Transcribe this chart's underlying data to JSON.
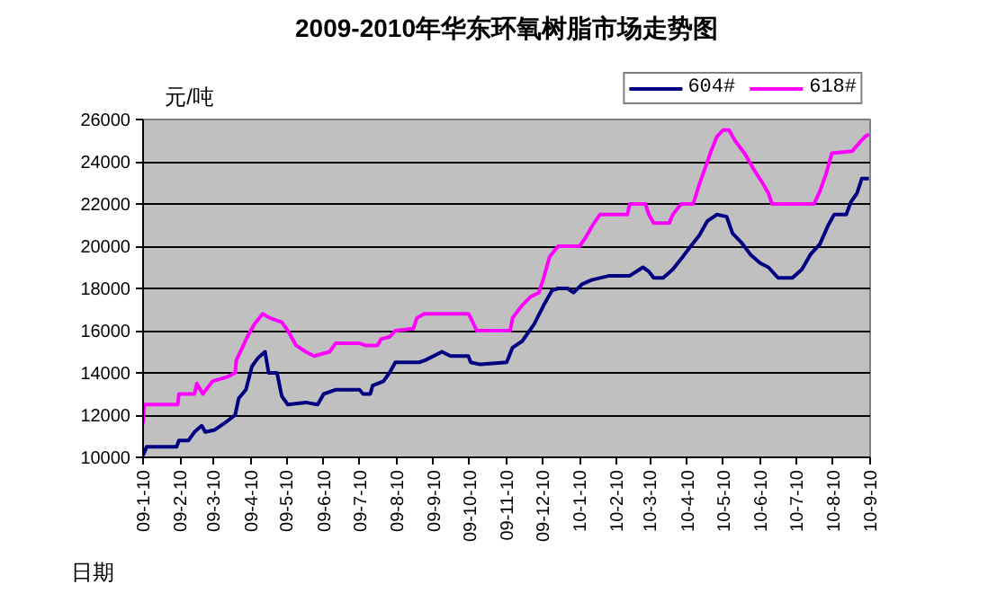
{
  "chart_data": {
    "type": "line",
    "title": "2009-2010年华东环氧树脂市场走势图",
    "ylabel": "元/吨",
    "xlabel": "日期",
    "ylim": [
      10000,
      26000
    ],
    "yticks": [
      10000,
      12000,
      14000,
      16000,
      18000,
      20000,
      22000,
      24000,
      26000
    ],
    "xlim": [
      "2009-01-10",
      "2010-09-10"
    ],
    "xticks": [
      {
        "value": "2009-01-10",
        "label": "09-1-10"
      },
      {
        "value": "2009-02-10",
        "label": "09-2-10"
      },
      {
        "value": "2009-03-10",
        "label": "09-3-10"
      },
      {
        "value": "2009-04-10",
        "label": "09-4-10"
      },
      {
        "value": "2009-05-10",
        "label": "09-5-10"
      },
      {
        "value": "2009-06-10",
        "label": "09-6-10"
      },
      {
        "value": "2009-07-10",
        "label": "09-7-10"
      },
      {
        "value": "2009-08-10",
        "label": "09-8-10"
      },
      {
        "value": "2009-09-10",
        "label": "09-9-10"
      },
      {
        "value": "2009-10-10",
        "label": "09-10-10"
      },
      {
        "value": "2009-11-10",
        "label": "09-11-10"
      },
      {
        "value": "2009-12-10",
        "label": "09-12-10"
      },
      {
        "value": "2010-01-10",
        "label": "10-1-10"
      },
      {
        "value": "2010-02-10",
        "label": "10-2-10"
      },
      {
        "value": "2010-03-10",
        "label": "10-3-10"
      },
      {
        "value": "2010-04-10",
        "label": "10-4-10"
      },
      {
        "value": "2010-05-10",
        "label": "10-5-10"
      },
      {
        "value": "2010-06-10",
        "label": "10-6-10"
      },
      {
        "value": "2010-07-10",
        "label": "10-7-10"
      },
      {
        "value": "2010-08-10",
        "label": "10-8-10"
      },
      {
        "value": "2010-09-10",
        "label": "10-9-10"
      }
    ],
    "grid": "y",
    "legend": "top right",
    "marker": "none",
    "line_style": "solid",
    "series": [
      {
        "name": "604#",
        "color": "#000080",
        "x": [
          "2009-01-10",
          "2009-01-13",
          "2009-02-07",
          "2009-02-09",
          "2009-02-17",
          "2009-02-22",
          "2009-02-28",
          "2009-03-03",
          "2009-03-11",
          "2009-03-21",
          "2009-03-28",
          "2009-03-31",
          "2009-04-06",
          "2009-04-11",
          "2009-04-16",
          "2009-04-22",
          "2009-04-25",
          "2009-05-02",
          "2009-05-06",
          "2009-05-11",
          "2009-05-26",
          "2009-06-05",
          "2009-06-10",
          "2009-06-20",
          "2009-07-10",
          "2009-07-13",
          "2009-07-19",
          "2009-07-21",
          "2009-07-30",
          "2009-08-04",
          "2009-08-09",
          "2009-08-29",
          "2009-09-03",
          "2009-09-17",
          "2009-09-24",
          "2009-10-09",
          "2009-10-11",
          "2009-10-19",
          "2009-11-10",
          "2009-11-15",
          "2009-11-23",
          "2009-12-03",
          "2009-12-11",
          "2009-12-18",
          "2009-12-23",
          "2009-12-31",
          "2010-01-05",
          "2010-01-12",
          "2010-01-20",
          "2010-02-04",
          "2010-02-21",
          "2010-03-04",
          "2010-03-09",
          "2010-03-13",
          "2010-03-21",
          "2010-03-29",
          "2010-04-05",
          "2010-04-13",
          "2010-04-20",
          "2010-04-27",
          "2010-05-05",
          "2010-05-13",
          "2010-05-18",
          "2010-05-25",
          "2010-06-02",
          "2010-06-10",
          "2010-06-17",
          "2010-06-25",
          "2010-07-07",
          "2010-07-15",
          "2010-07-22",
          "2010-07-30",
          "2010-08-06",
          "2010-08-11",
          "2010-08-21",
          "2010-08-25",
          "2010-08-30",
          "2010-09-03",
          "2010-09-09"
        ],
        "values": [
          10100,
          10500,
          10500,
          10800,
          10800,
          11200,
          11500,
          11200,
          11300,
          11700,
          12000,
          12800,
          13200,
          14300,
          14700,
          15000,
          14000,
          14000,
          12900,
          12500,
          12600,
          12500,
          13000,
          13200,
          13200,
          13000,
          13000,
          13400,
          13600,
          14000,
          14500,
          14500,
          14600,
          15000,
          14800,
          14800,
          14500,
          14400,
          14500,
          15200,
          15500,
          16300,
          17200,
          17900,
          18000,
          18000,
          17800,
          18200,
          18400,
          18600,
          18600,
          19000,
          18800,
          18500,
          18500,
          18900,
          19400,
          20000,
          20500,
          21200,
          21500,
          21400,
          20600,
          20200,
          19600,
          19200,
          19000,
          18500,
          18500,
          18900,
          19600,
          20100,
          21000,
          21500,
          21500,
          22100,
          22500,
          23200,
          23200
        ]
      },
      {
        "name": "618#",
        "color": "#ff00ff",
        "x": [
          "2009-01-10",
          "2009-01-11",
          "2009-02-08",
          "2009-02-09",
          "2009-02-22",
          "2009-02-24",
          "2009-03-01",
          "2009-03-09",
          "2009-03-21",
          "2009-03-28",
          "2009-03-29",
          "2009-04-03",
          "2009-04-08",
          "2009-04-13",
          "2009-04-20",
          "2009-04-26",
          "2009-05-06",
          "2009-05-11",
          "2009-05-18",
          "2009-05-26",
          "2009-06-02",
          "2009-06-15",
          "2009-06-20",
          "2009-07-10",
          "2009-07-15",
          "2009-07-25",
          "2009-07-28",
          "2009-08-04",
          "2009-08-09",
          "2009-08-24",
          "2009-08-27",
          "2009-09-02",
          "2009-10-09",
          "2009-10-11",
          "2009-10-16",
          "2009-11-13",
          "2009-11-15",
          "2009-11-23",
          "2009-11-30",
          "2009-12-07",
          "2009-12-11",
          "2009-12-16",
          "2009-12-23",
          "2010-01-10",
          "2010-01-15",
          "2010-01-21",
          "2010-01-27",
          "2010-02-19",
          "2010-02-21",
          "2010-03-06",
          "2010-03-09",
          "2010-03-13",
          "2010-03-26",
          "2010-03-29",
          "2010-04-05",
          "2010-04-15",
          "2010-04-20",
          "2010-04-25",
          "2010-04-30",
          "2010-05-05",
          "2010-05-10",
          "2010-05-15",
          "2010-05-20",
          "2010-05-28",
          "2010-06-04",
          "2010-06-12",
          "2010-06-17",
          "2010-06-20",
          "2010-07-25",
          "2010-07-30",
          "2010-08-04",
          "2010-08-09",
          "2010-08-26",
          "2010-09-01",
          "2010-09-06",
          "2010-09-09"
        ],
        "values": [
          11600,
          12500,
          12500,
          13000,
          13000,
          13500,
          13000,
          13600,
          13800,
          14000,
          14600,
          15200,
          15800,
          16300,
          16800,
          16600,
          16400,
          16000,
          15300,
          15000,
          14800,
          15000,
          15400,
          15400,
          15300,
          15300,
          15600,
          15700,
          16000,
          16100,
          16600,
          16800,
          16800,
          16600,
          16000,
          16000,
          16600,
          17200,
          17600,
          17800,
          18500,
          19500,
          20000,
          20000,
          20400,
          21000,
          21500,
          21500,
          22000,
          22000,
          21500,
          21100,
          21100,
          21500,
          22000,
          22000,
          22900,
          23700,
          24500,
          25200,
          25500,
          25500,
          25000,
          24400,
          23700,
          23000,
          22500,
          22000,
          22000,
          22600,
          23400,
          24400,
          24500,
          24900,
          25200,
          25300
        ]
      }
    ]
  }
}
